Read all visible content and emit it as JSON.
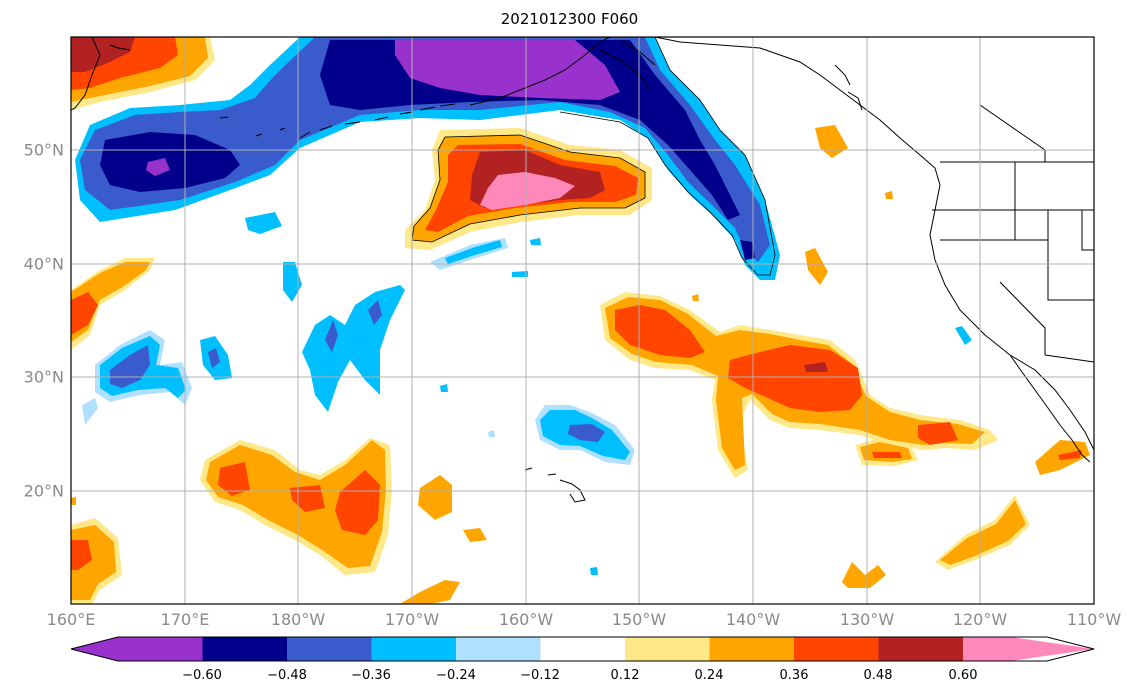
{
  "title": "2021012300 F060",
  "lon_ticks": [
    "160°E",
    "170°E",
    "180°W",
    "170°W",
    "160°W",
    "150°W",
    "140°W",
    "130°W",
    "120°W",
    "110°W"
  ],
  "lat_ticks": [
    "50°N",
    "40°N",
    "30°N",
    "20°N"
  ],
  "colorbar": {
    "labels": [
      "−0.60",
      "−0.48",
      "−0.36",
      "−0.24",
      "−0.12",
      "0.12",
      "0.24",
      "0.36",
      "0.48",
      "0.60"
    ],
    "colors": [
      "#9932cc",
      "#00008b",
      "#3a5bcc",
      "#00bfff",
      "#b0e0ff",
      "#ffffff",
      "#ffe888",
      "#ffa500",
      "#ff4500",
      "#b22222",
      "#ff88bb"
    ]
  },
  "palette": {
    "purple": "#9932cc",
    "navy": "#00008b",
    "blue": "#3a5bcc",
    "sky": "#00bfff",
    "pale": "#b0e0ff",
    "yellow": "#ffe888",
    "orange": "#ffa500",
    "red": "#ff4500",
    "darkred": "#b22222",
    "pink": "#ff88bb"
  }
}
